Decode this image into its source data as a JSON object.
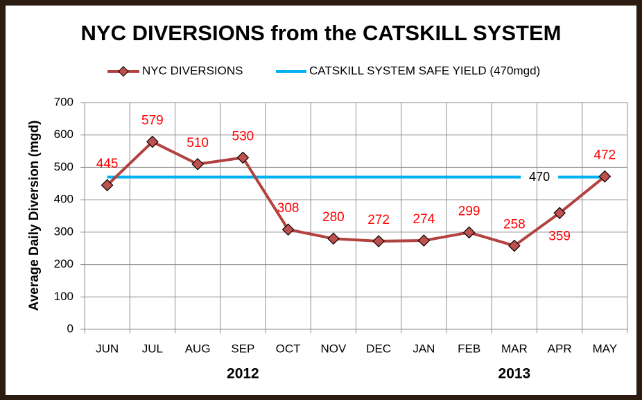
{
  "chart_data": {
    "type": "line",
    "title": "NYC DIVERSIONS from the CATSKILL SYSTEM",
    "y_label": "Average Daily Diversion (mgd)",
    "categories": [
      "JUN",
      "JUL",
      "AUG",
      "SEP",
      "OCT",
      "NOV",
      "DEC",
      "JAN",
      "FEB",
      "MAR",
      "APR",
      "MAY"
    ],
    "year_labels": [
      "2012",
      "2013"
    ],
    "series": [
      {
        "name": "NYC DIVERSIONS",
        "color": "#b2423f",
        "marker_color": "#c0504d",
        "values": [
          445,
          579,
          510,
          530,
          308,
          280,
          272,
          274,
          299,
          258,
          359,
          472
        ]
      }
    ],
    "reference_line": {
      "name": "CATSKILL SYSTEM SAFE YIELD (470mgd)",
      "value": 470,
      "color": "#00b0f0"
    },
    "ylim": [
      0,
      700
    ],
    "yticks": [
      0,
      100,
      200,
      300,
      400,
      500,
      600,
      700
    ],
    "grid": true
  }
}
